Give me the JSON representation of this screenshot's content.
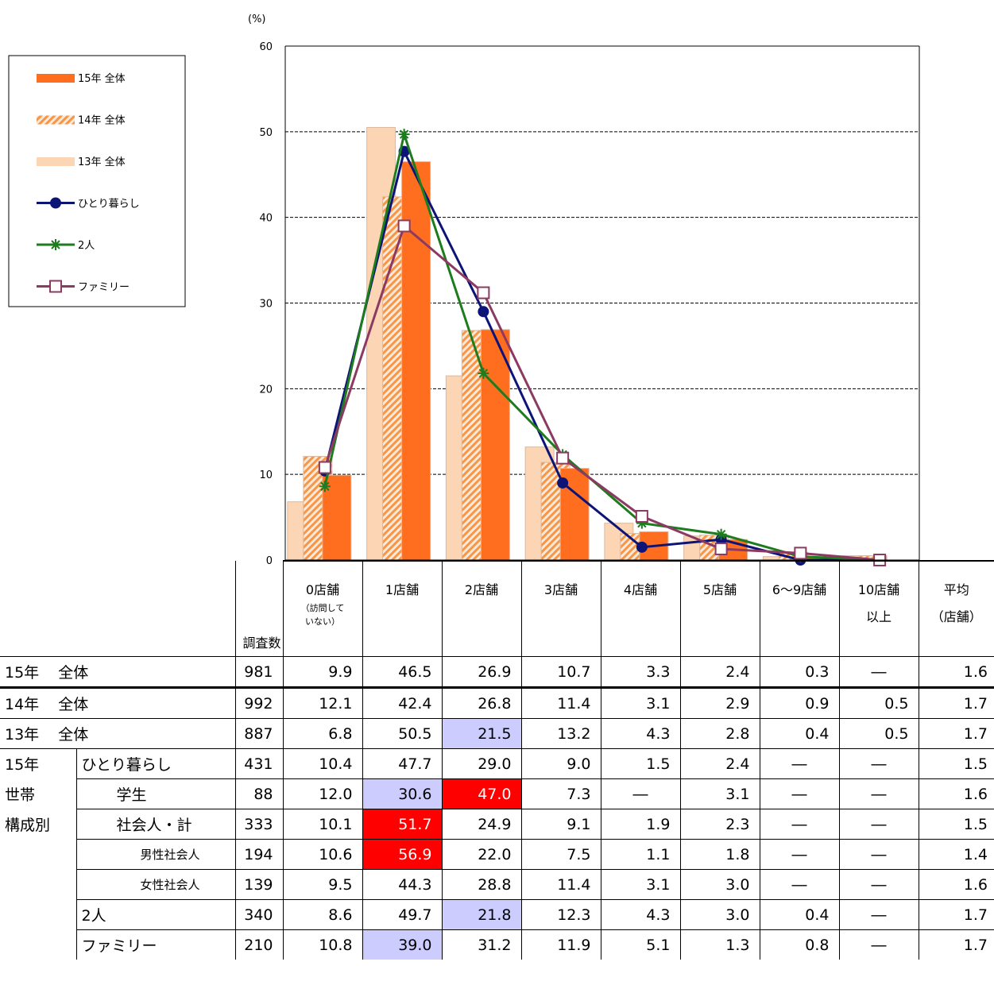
{
  "chart_data": {
    "type": "bar",
    "y_unit": "(%)",
    "ylim": [
      0,
      60
    ],
    "yticks": [
      "0",
      "10",
      "20",
      "30",
      "40",
      "50",
      "60"
    ],
    "grid": true,
    "legend_position": "left",
    "categories": [
      "0店舗",
      "1店舗",
      "2店舗",
      "3店舗",
      "4店舗",
      "5店舗",
      "6〜9店舗",
      "10店舗以上"
    ],
    "bar_series": [
      {
        "name": "13年 全体",
        "color": "#fcd5b4",
        "values": [
          6.8,
          50.5,
          21.5,
          13.2,
          4.3,
          2.8,
          0.4,
          0.5
        ]
      },
      {
        "name": "14年 全体",
        "color": "#f79646",
        "pattern": "hatch",
        "values": [
          12.1,
          42.4,
          26.8,
          11.4,
          3.1,
          2.9,
          0.9,
          0.5
        ]
      },
      {
        "name": "15年 全体",
        "color": "#ff6d1f",
        "values": [
          9.9,
          46.5,
          26.9,
          10.7,
          3.3,
          2.4,
          0.3,
          0
        ]
      }
    ],
    "line_series": [
      {
        "name": "ひとり暮らし",
        "color": "#0d1477",
        "marker": "circle",
        "values": [
          10.4,
          47.7,
          29.0,
          9.0,
          1.5,
          2.4,
          0,
          0
        ]
      },
      {
        "name": "2人",
        "color": "#1e7b1e",
        "marker": "star",
        "values": [
          8.6,
          49.7,
          21.8,
          12.3,
          4.3,
          3.0,
          0.4,
          0
        ]
      },
      {
        "name": "ファミリー",
        "color": "#8b3a62",
        "marker": "square",
        "values": [
          10.8,
          39.0,
          31.2,
          11.9,
          5.1,
          1.3,
          0.8,
          0
        ]
      }
    ],
    "legend_order": [
      "15年 全体",
      "14年 全体",
      "13年 全体",
      "ひとり暮らし",
      "2人",
      "ファミリー"
    ]
  },
  "table": {
    "count_header": "調査数",
    "headers": [
      {
        "main": "0店舗",
        "sub1": "（訪問して",
        "sub2": "いない）"
      },
      {
        "main": "1店舗"
      },
      {
        "main": "2店舗"
      },
      {
        "main": "3店舗"
      },
      {
        "main": "4店舗"
      },
      {
        "main": "5店舗"
      },
      {
        "main": "6〜9店舗"
      },
      {
        "main": "10店舗",
        "main2": "以上"
      },
      {
        "main": "平均",
        "main2": "（店舗）"
      }
    ],
    "rows": [
      {
        "label_a": "15年",
        "label_b": "全体",
        "count": "981",
        "values": [
          "9.9",
          "46.5",
          "26.9",
          "10.7",
          "3.3",
          "2.4",
          "0.3",
          "―",
          "1.6"
        ]
      },
      {
        "label_a": "14年",
        "label_b": "全体",
        "count": "992",
        "values": [
          "12.1",
          "42.4",
          "26.8",
          "11.4",
          "3.1",
          "2.9",
          "0.9",
          "0.5",
          "1.7"
        ]
      },
      {
        "label_a": "13年",
        "label_b": "全体",
        "count": "887",
        "values": [
          "6.8",
          "50.5",
          "21.5",
          "13.2",
          "4.3",
          "2.8",
          "0.4",
          "0.5",
          "1.7"
        ]
      },
      {
        "group": "15年",
        "label": "ひとり暮らし",
        "count": "431",
        "values": [
          "10.4",
          "47.7",
          "29.0",
          "9.0",
          "1.5",
          "2.4",
          "―",
          "―",
          "1.5"
        ]
      },
      {
        "group": "世帯",
        "label": "学生",
        "count": "88",
        "values": [
          "12.0",
          "30.6",
          "47.0",
          "7.3",
          "―",
          "3.1",
          "―",
          "―",
          "1.6"
        ]
      },
      {
        "group": "構成別",
        "label": "社会人・計",
        "count": "333",
        "values": [
          "10.1",
          "51.7",
          "24.9",
          "9.1",
          "1.9",
          "2.3",
          "―",
          "―",
          "1.5"
        ]
      },
      {
        "group": "",
        "label": "男性社会人",
        "count": "194",
        "values": [
          "10.6",
          "56.9",
          "22.0",
          "7.5",
          "1.1",
          "1.8",
          "―",
          "―",
          "1.4"
        ]
      },
      {
        "group": "",
        "label": "女性社会人",
        "count": "139",
        "values": [
          "9.5",
          "44.3",
          "28.8",
          "11.4",
          "3.1",
          "3.0",
          "―",
          "―",
          "1.6"
        ]
      },
      {
        "group": "",
        "label": "2人",
        "count": "340",
        "values": [
          "8.6",
          "49.7",
          "21.8",
          "12.3",
          "4.3",
          "3.0",
          "0.4",
          "―",
          "1.7"
        ]
      },
      {
        "group": "",
        "label": "ファミリー",
        "count": "210",
        "values": [
          "10.8",
          "39.0",
          "31.2",
          "11.9",
          "5.1",
          "1.3",
          "0.8",
          "―",
          "1.7"
        ]
      }
    ]
  }
}
